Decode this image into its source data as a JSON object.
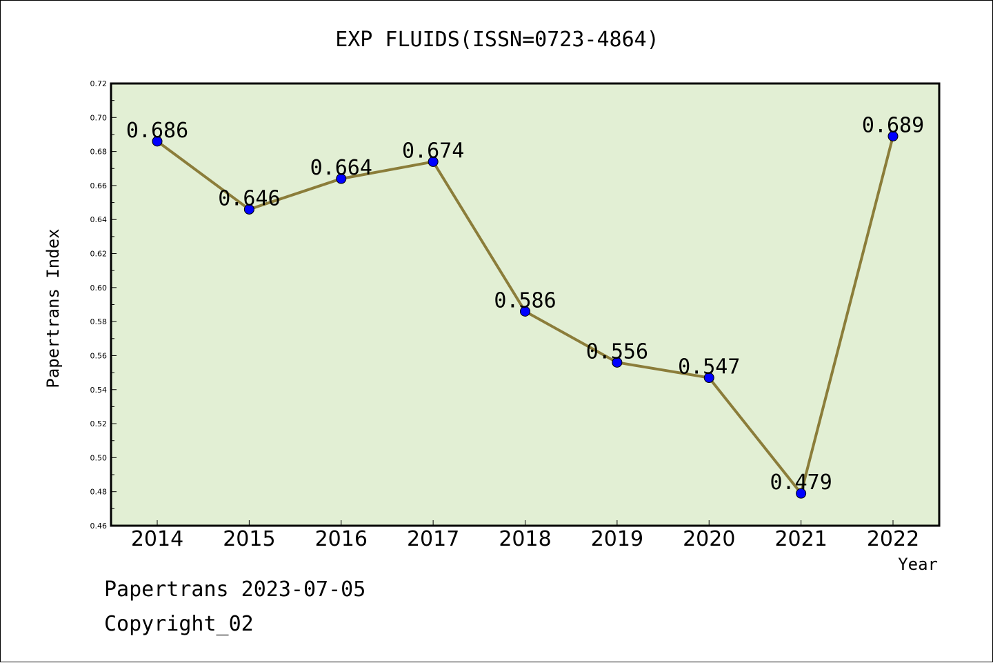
{
  "chart_data": {
    "type": "line",
    "title": "EXP FLUIDS(ISSN=0723-4864)",
    "xlabel": "Year",
    "ylabel": "Papertrans Index",
    "categories": [
      "2014",
      "2015",
      "2016",
      "2017",
      "2018",
      "2019",
      "2020",
      "2021",
      "2022"
    ],
    "values": [
      0.686,
      0.646,
      0.664,
      0.674,
      0.586,
      0.556,
      0.547,
      0.479,
      0.689
    ],
    "data_labels": [
      "0.686",
      "0.646",
      "0.664",
      "0.674",
      "0.586",
      "0.556",
      "0.547",
      "0.479",
      "0.689"
    ],
    "ylim": [
      0.46,
      0.72
    ],
    "yticks": [
      "0.46",
      "0.48",
      "0.50",
      "0.52",
      "0.54",
      "0.56",
      "0.58",
      "0.60",
      "0.62",
      "0.64",
      "0.66",
      "0.68",
      "0.70",
      "0.72"
    ],
    "grid": false,
    "colors": {
      "line": "#8b7d3a",
      "marker": "#0000ff",
      "plot_background": "#e2efd4"
    }
  },
  "footer": {
    "source": "Papertrans 2023-07-05",
    "copyright": "Copyright_02"
  }
}
